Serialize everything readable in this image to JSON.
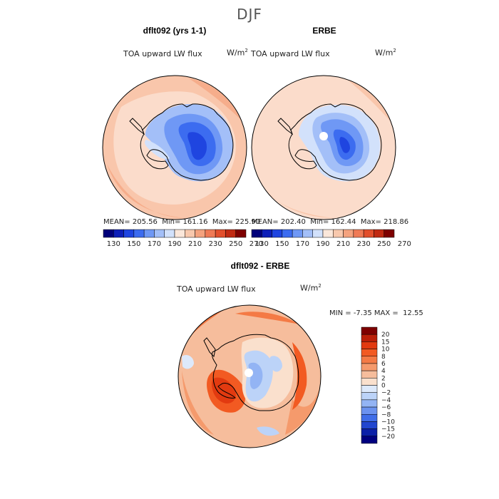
{
  "page": {
    "season": "DJF",
    "field_name": "TOA upward LW flux",
    "units_base": "W/m",
    "units_exp": "2"
  },
  "panels": {
    "model": {
      "title": "dflt092 (yrs 1-1)",
      "mean_label": "MEAN=",
      "mean": "205.56",
      "min_label": "Min=",
      "min": "161.16",
      "max_label": "Max=",
      "max": "225.90"
    },
    "obs": {
      "title": "ERBE",
      "mean_label": "MEAN=",
      "mean": "202.40",
      "min_label": "Min=",
      "min": "162.44",
      "max_label": "Max=",
      "max": "218.86"
    },
    "diff": {
      "title": "dflt092 - ERBE",
      "min_label": "MIN =",
      "min": "-7.35",
      "max_label": "MAX =",
      "max": "12.55"
    }
  },
  "colorbars": {
    "abs_ticks": [
      "130",
      "150",
      "170",
      "190",
      "210",
      "230",
      "250",
      "270"
    ],
    "abs_colors": [
      "#00007a",
      "#0d1fb8",
      "#1f45e0",
      "#3c6cf0",
      "#6f98f5",
      "#a3bff8",
      "#d2e1fb",
      "#fbe7da",
      "#f8c8ad",
      "#f4a27e",
      "#ef7a55",
      "#e24f2c",
      "#c02a12",
      "#7e0000"
    ],
    "diff_ticks": [
      "20",
      "15",
      "10",
      "8",
      "6",
      "4",
      "2",
      "0",
      "−2",
      "−4",
      "−6",
      "−8",
      "−10",
      "−15",
      "−20"
    ],
    "diff_colors": [
      "#7e0000",
      "#bb1f08",
      "#e23a10",
      "#f25a22",
      "#f47a45",
      "#f59a6c",
      "#f6bd9c",
      "#fae0cd",
      "#dde9fb",
      "#bcd3f8",
      "#93b4f4",
      "#6b92ef",
      "#3f6de8",
      "#2146cf",
      "#0b20a8",
      "#000080"
    ]
  },
  "chart_data": [
    {
      "type": "heatmap",
      "title": "dflt092 (yrs 1-1)",
      "subtitle": "TOA upward LW flux",
      "units": "W/m2",
      "projection": "south-polar-stereographic",
      "levels": [
        130,
        140,
        150,
        160,
        170,
        180,
        190,
        200,
        210,
        220,
        230,
        240,
        250,
        260,
        270
      ],
      "mean": 205.56,
      "min": 161.16,
      "max": 225.9
    },
    {
      "type": "heatmap",
      "title": "ERBE",
      "subtitle": "TOA upward LW flux",
      "units": "W/m2",
      "projection": "south-polar-stereographic",
      "levels": [
        130,
        140,
        150,
        160,
        170,
        180,
        190,
        200,
        210,
        220,
        230,
        240,
        250,
        260,
        270
      ],
      "mean": 202.4,
      "min": 162.44,
      "max": 218.86
    },
    {
      "type": "heatmap",
      "title": "dflt092 - ERBE",
      "subtitle": "TOA upward LW flux",
      "units": "W/m2",
      "projection": "south-polar-stereographic",
      "levels": [
        -20,
        -15,
        -10,
        -8,
        -6,
        -4,
        -2,
        0,
        2,
        4,
        6,
        8,
        10,
        15,
        20
      ],
      "min": -7.35,
      "max": 12.55
    }
  ]
}
